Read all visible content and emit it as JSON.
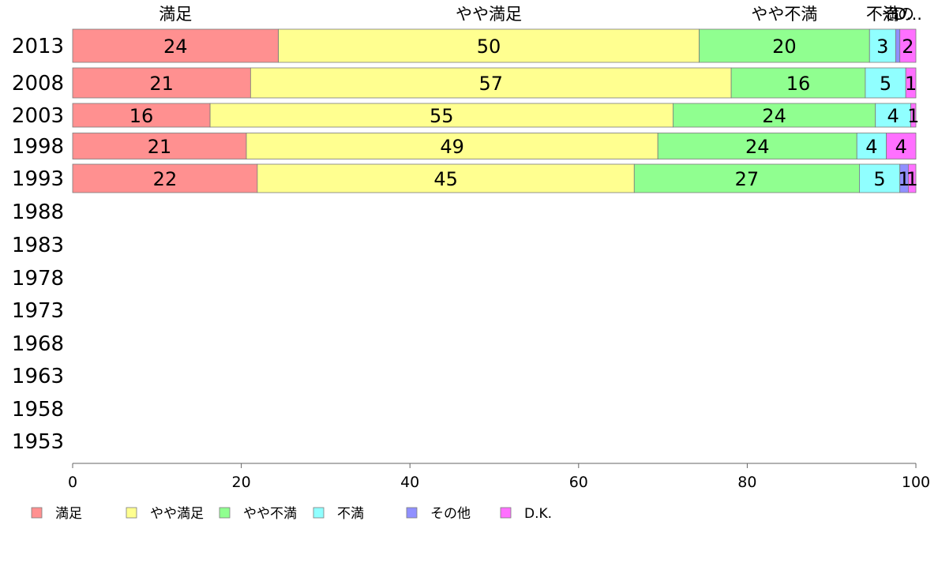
{
  "chart_data": {
    "type": "bar",
    "orientation": "horizontal",
    "stacked": true,
    "years": [
      "2013",
      "2008",
      "2003",
      "1998",
      "1993",
      "1988",
      "1983",
      "1978",
      "1973",
      "1968",
      "1963",
      "1958",
      "1953"
    ],
    "series": [
      {
        "name": "満足",
        "color": "#ff9090",
        "values": [
          24.4,
          21.1,
          16.3,
          20.6,
          21.9,
          null,
          null,
          null,
          null,
          null,
          null,
          null,
          null
        ],
        "labels": [
          "24",
          "21",
          "16",
          "21",
          "22",
          "",
          "",
          "",
          "",
          "",
          "",
          "",
          ""
        ]
      },
      {
        "name": "やや満足",
        "color": "#ffff90",
        "values": [
          49.9,
          57.0,
          54.9,
          48.8,
          44.7,
          null,
          null,
          null,
          null,
          null,
          null,
          null,
          null
        ],
        "labels": [
          "50",
          "57",
          "55",
          "49",
          "45",
          "",
          "",
          "",
          "",
          "",
          "",
          "",
          ""
        ]
      },
      {
        "name": "やや不満",
        "color": "#90ff90",
        "values": [
          20.2,
          15.9,
          24.0,
          23.6,
          26.7,
          null,
          null,
          null,
          null,
          null,
          null,
          null,
          null
        ],
        "labels": [
          "20",
          "16",
          "24",
          "24",
          "27",
          "",
          "",
          "",
          "",
          "",
          "",
          "",
          ""
        ]
      },
      {
        "name": "不満",
        "color": "#90ffff",
        "values": [
          3.1,
          4.8,
          4.2,
          3.5,
          4.8,
          null,
          null,
          null,
          null,
          null,
          null,
          null,
          null
        ],
        "labels": [
          "3",
          "5",
          "4",
          "4",
          "5",
          "",
          "",
          "",
          "",
          "",
          "",
          "",
          ""
        ]
      },
      {
        "name": "その他",
        "color": "#9090ff",
        "values": [
          0.5,
          0.0,
          0.0,
          0.0,
          1.0,
          null,
          null,
          null,
          null,
          null,
          null,
          null,
          null
        ],
        "labels": [
          "",
          "",
          "",
          "",
          "1",
          "",
          "",
          "",
          "",
          "",
          "",
          "",
          ""
        ]
      },
      {
        "name": "D.K.",
        "color": "#ff70ff",
        "values": [
          1.9,
          1.2,
          0.6,
          3.5,
          0.9,
          null,
          null,
          null,
          null,
          null,
          null,
          null,
          null
        ],
        "labels": [
          "2",
          "1",
          "1",
          "4",
          "1",
          "",
          "",
          "",
          "",
          "",
          "",
          "",
          ""
        ]
      }
    ],
    "top_labels": [
      "満足",
      "やや満足",
      "やや不満",
      "不満",
      "その他",
      "D.K."
    ],
    "top_label_display": [
      "満足",
      "やや満足",
      "やや不満",
      "不満",
      "その",
      "D..."
    ],
    "xlim": [
      0,
      100
    ],
    "xticks": [
      0,
      20,
      40,
      60,
      80,
      100
    ],
    "legend_position": "bottom",
    "grid": false
  }
}
